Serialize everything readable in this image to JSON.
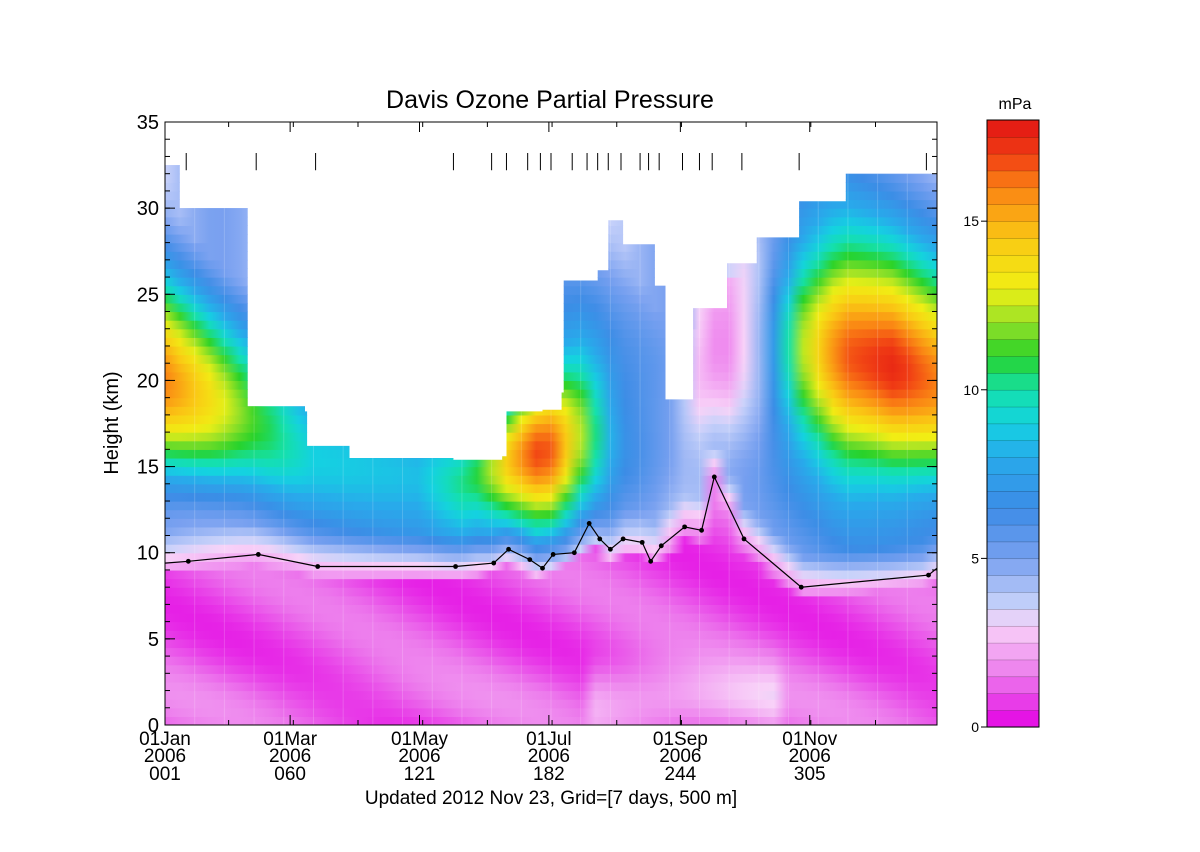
{
  "chart_data": {
    "type": "heatmap",
    "title": "Davis Ozone Partial Pressure",
    "ylabel": "Height (km)",
    "footer": "Updated 2012 Nov 23, Grid=[7 days, 500 m]",
    "xlim_day": [
      1,
      365
    ],
    "ylim": [
      0,
      35
    ],
    "yticks": [
      0,
      5,
      10,
      15,
      20,
      25,
      30,
      35
    ],
    "xticks": [
      {
        "day": 1,
        "date": "01Jan",
        "year": "2006",
        "doy": "001"
      },
      {
        "day": 60,
        "date": "01Mar",
        "year": "2006",
        "doy": "060"
      },
      {
        "day": 121,
        "date": "01May",
        "year": "2006",
        "doy": "121"
      },
      {
        "day": 182,
        "date": "01Jul",
        "year": "2006",
        "doy": "182"
      },
      {
        "day": 244,
        "date": "01Sep",
        "year": "2006",
        "doy": "244"
      },
      {
        "day": 305,
        "date": "01Nov",
        "year": "2006",
        "doy": "305"
      }
    ],
    "colorbar": {
      "label": "mPa",
      "min": 0,
      "max": 18,
      "ticks": [
        0,
        5,
        10,
        15
      ]
    },
    "sounding_days": [
      11,
      44,
      72,
      137,
      155,
      162,
      172,
      178,
      183,
      193,
      200,
      205,
      210,
      216,
      225,
      229,
      234,
      245,
      253,
      259,
      273,
      300,
      360
    ],
    "profile_top_km": [
      [
        1,
        32.5
      ],
      [
        8,
        30.0
      ],
      [
        39,
        30.0
      ],
      [
        40,
        18.5
      ],
      [
        67,
        18.2
      ],
      [
        68,
        16.2
      ],
      [
        88,
        15.5
      ],
      [
        137,
        15.4
      ],
      [
        160,
        15.6
      ],
      [
        162,
        18.2
      ],
      [
        179,
        18.3
      ],
      [
        188,
        19.3
      ],
      [
        189,
        25.8
      ],
      [
        205,
        26.4
      ],
      [
        210,
        29.3
      ],
      [
        217,
        27.9
      ],
      [
        232,
        25.5
      ],
      [
        237,
        18.9
      ],
      [
        244,
        18.9
      ],
      [
        250,
        24.2
      ],
      [
        266,
        26.8
      ],
      [
        280,
        28.3
      ],
      [
        300,
        30.4
      ],
      [
        322,
        32.0
      ],
      [
        364,
        32.0
      ]
    ],
    "series": [
      {
        "name": "tropopause",
        "x_day": [
          1,
          12,
          45,
          73,
          138,
          156,
          163,
          173,
          179,
          184,
          194,
          201,
          206,
          211,
          217,
          226,
          230,
          235,
          246,
          254,
          260,
          274,
          301,
          361,
          365
        ],
        "y_km": [
          9.4,
          9.5,
          9.9,
          9.2,
          9.2,
          9.4,
          10.2,
          9.6,
          9.1,
          9.9,
          10.0,
          11.7,
          10.8,
          10.2,
          10.8,
          10.6,
          9.5,
          10.4,
          11.5,
          11.3,
          14.4,
          10.8,
          8.0,
          8.7,
          9.1
        ]
      }
    ]
  }
}
